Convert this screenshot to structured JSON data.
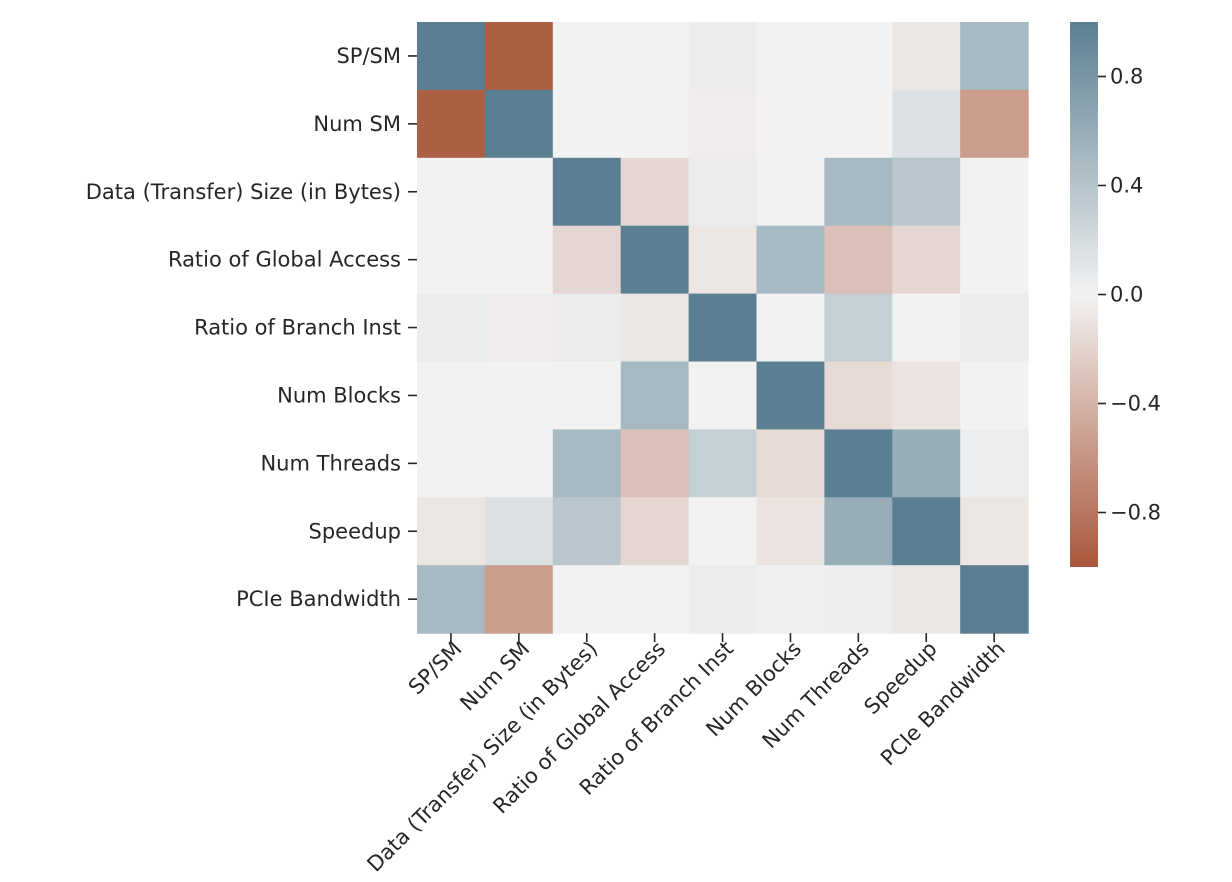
{
  "chart_data": {
    "type": "heatmap",
    "title": "",
    "xlabel": "",
    "ylabel": "",
    "labels": [
      "SP/SM",
      "Num SM",
      "Data (Transfer) Size (in Bytes)",
      "Ratio of Global Access",
      "Ratio of Branch Inst",
      "Num Blocks",
      "Num Threads",
      "Speedup",
      "PCIe Bandwidth"
    ],
    "matrix": [
      [
        1.0,
        -0.95,
        0.0,
        0.0,
        0.05,
        0.0,
        0.0,
        -0.08,
        0.5
      ],
      [
        -0.95,
        1.0,
        0.0,
        0.0,
        -0.04,
        0.0,
        0.0,
        0.15,
        -0.55
      ],
      [
        0.0,
        0.0,
        1.0,
        -0.18,
        0.06,
        0.0,
        0.5,
        0.38,
        0.0
      ],
      [
        0.0,
        0.0,
        -0.18,
        1.0,
        -0.08,
        0.5,
        -0.32,
        -0.18,
        0.0
      ],
      [
        0.05,
        -0.04,
        0.06,
        -0.08,
        1.0,
        0.0,
        0.3,
        0.0,
        0.05
      ],
      [
        0.0,
        0.0,
        0.0,
        0.5,
        0.0,
        1.0,
        -0.15,
        -0.1,
        0.0
      ],
      [
        0.0,
        0.0,
        0.5,
        -0.32,
        0.3,
        -0.15,
        1.0,
        0.6,
        0.04
      ],
      [
        -0.08,
        0.15,
        0.38,
        -0.18,
        0.0,
        -0.1,
        0.6,
        1.0,
        -0.08
      ],
      [
        0.5,
        -0.55,
        0.0,
        0.0,
        0.05,
        0.02,
        0.04,
        -0.08,
        1.0
      ]
    ],
    "colorbar": {
      "vmin": -1.0,
      "vmax": 1.0,
      "ticks": [
        0.8,
        0.4,
        0.0,
        -0.4,
        -0.8
      ],
      "tick_labels": [
        "0.8",
        "0.4",
        "0.0",
        "−0.4",
        "−0.8"
      ],
      "negative_color": "#a9573a",
      "center_color": "#f2f2f2",
      "positive_color": "#5b7f92"
    },
    "grid": false,
    "legend": "colorbar-right"
  }
}
